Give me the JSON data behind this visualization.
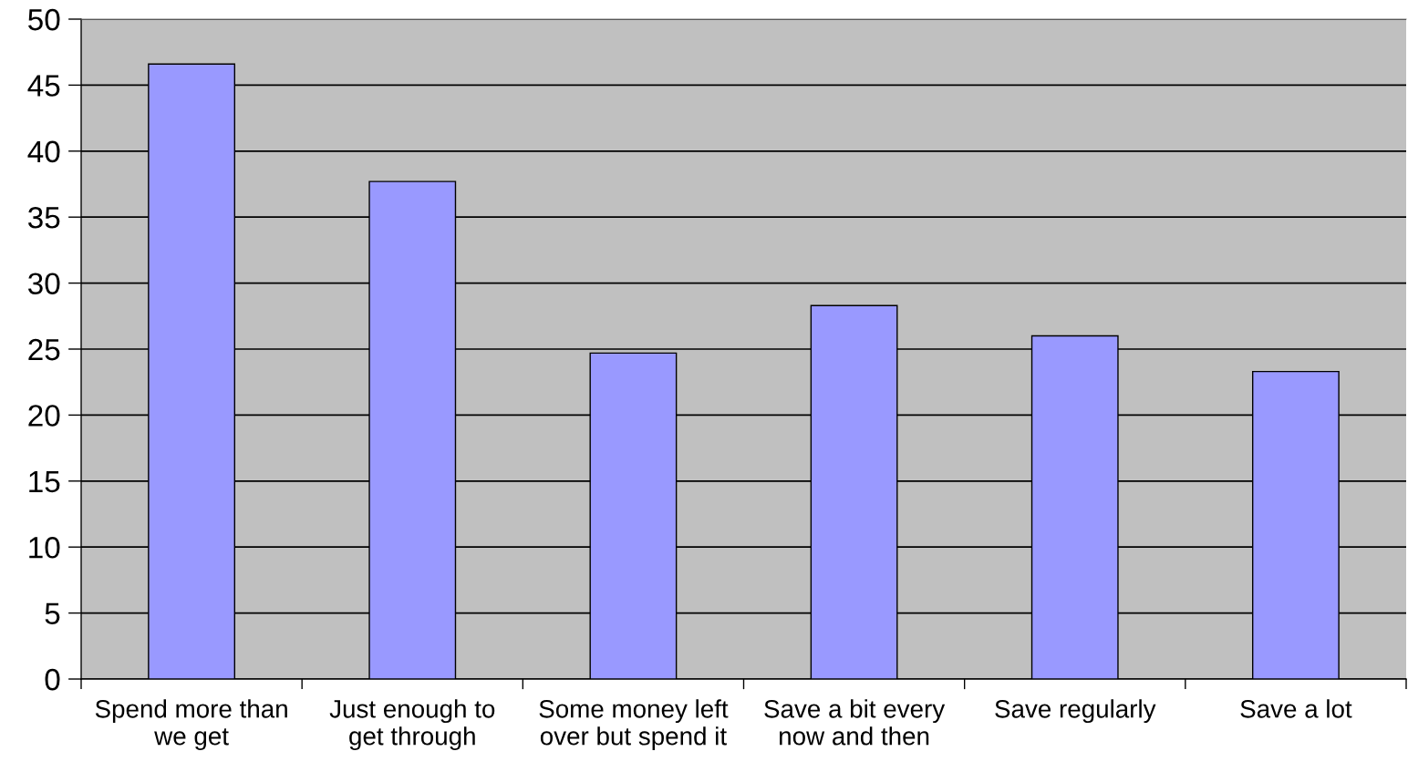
{
  "chart_data": {
    "type": "bar",
    "categories": [
      "Spend more than\nwe get",
      "Just enough to\nget through",
      "Some money left\nover but spend it",
      "Save a bit every\nnow and then",
      "Save regularly",
      "Save a lot"
    ],
    "values": [
      46.6,
      37.7,
      24.7,
      28.3,
      26.0,
      23.3
    ],
    "color": "#9999ff",
    "ylim": [
      0,
      50
    ],
    "yticks": [
      0,
      5,
      10,
      15,
      20,
      25,
      30,
      35,
      40,
      45,
      50
    ],
    "grid": "y"
  }
}
